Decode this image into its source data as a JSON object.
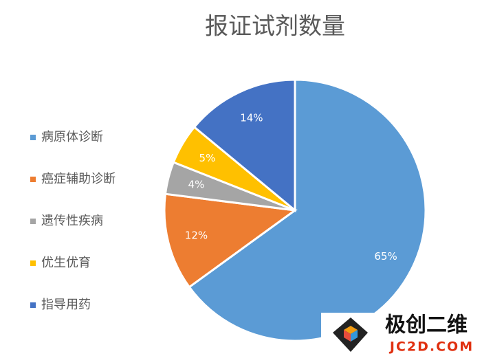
{
  "chart_data": {
    "type": "pie",
    "title": "报证试剂数量",
    "categories": [
      "病原体诊断",
      "癌症辅助诊断",
      "遗传性疾病",
      "优生优育",
      "指导用药"
    ],
    "values": [
      65,
      12,
      4,
      5,
      14
    ],
    "value_labels": [
      "65%",
      "12%",
      "4%",
      "5%",
      "14%"
    ],
    "colors": [
      "#5b9bd5",
      "#ed7d31",
      "#a5a5a5",
      "#ffc000",
      "#4472c4"
    ],
    "legend": "left"
  },
  "watermark": {
    "name": "极创二维",
    "url": "JC2D.COM"
  }
}
